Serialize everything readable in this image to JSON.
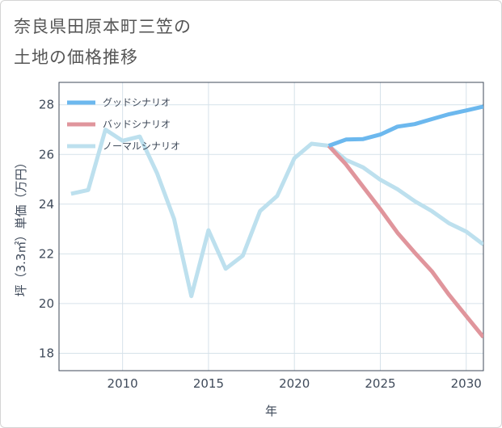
{
  "title_lines": [
    "奈良県田原本町三笠の",
    "土地の価格推移"
  ],
  "chart_data": {
    "type": "line",
    "xlabel": "年",
    "ylabel": "坪（3.3㎡）単価（万円）",
    "xlim": [
      2006.3,
      2031
    ],
    "ylim": [
      17.3,
      28.9
    ],
    "x_ticks": [
      2010,
      2015,
      2020,
      2025,
      2030
    ],
    "y_ticks": [
      18,
      20,
      22,
      24,
      26,
      28
    ],
    "grid": true,
    "legend_position": "top-left",
    "series": [
      {
        "name": "グッドシナリオ",
        "color": "#6cb8ee",
        "x": [
          2022,
          2023,
          2024,
          2025,
          2026,
          2027,
          2028,
          2029,
          2030,
          2031
        ],
        "y": [
          26.35,
          26.6,
          26.62,
          26.8,
          27.12,
          27.22,
          27.42,
          27.62,
          27.77,
          27.93
        ]
      },
      {
        "name": "バッドシナリオ",
        "color": "#e0959c",
        "x": [
          2022,
          2023,
          2024,
          2025,
          2026,
          2027,
          2028,
          2029,
          2030,
          2031
        ],
        "y": [
          26.35,
          25.6,
          24.7,
          23.8,
          22.85,
          22.05,
          21.3,
          20.35,
          19.5,
          18.65
        ]
      },
      {
        "name": "ノーマルシナリオ",
        "color": "#bde0ee",
        "x": [
          2007,
          2008,
          2009,
          2010,
          2011,
          2012,
          2013,
          2014,
          2015,
          2016,
          2017,
          2018,
          2019,
          2020,
          2021,
          2022,
          2023,
          2024,
          2025,
          2026,
          2027,
          2028,
          2029,
          2030,
          2031
        ],
        "y": [
          24.42,
          24.57,
          27.0,
          26.55,
          26.72,
          25.25,
          23.4,
          20.3,
          22.95,
          21.4,
          21.93,
          23.72,
          24.33,
          25.85,
          26.43,
          26.35,
          25.78,
          25.48,
          24.98,
          24.6,
          24.12,
          23.72,
          23.23,
          22.9,
          22.38
        ]
      }
    ]
  }
}
